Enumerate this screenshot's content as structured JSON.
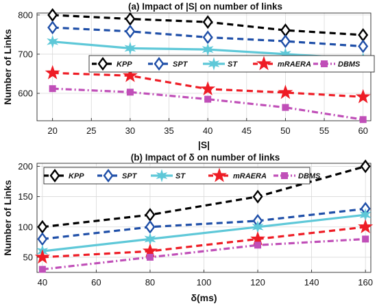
{
  "chart_data": [
    {
      "type": "line",
      "title": "(a) Impact of |S| on number of links",
      "xlabel": "|S|",
      "ylabel": "Number of Links",
      "xlim": [
        18,
        61
      ],
      "ylim": [
        530,
        805
      ],
      "xticks": [
        20,
        25,
        30,
        35,
        40,
        45,
        50,
        55,
        60
      ],
      "yticks": [
        600,
        700,
        800
      ],
      "x": [
        20,
        30,
        40,
        50,
        60
      ],
      "grid": true,
      "legend": "center, horizontal",
      "series": [
        {
          "name": "KPP",
          "color": "#000000",
          "dash": "dash",
          "marker": "diamond",
          "values": [
            800,
            790,
            782,
            761,
            749
          ]
        },
        {
          "name": "SPT",
          "color": "#1f4fa8",
          "dash": "dash",
          "marker": "diamond",
          "values": [
            768,
            758,
            743,
            733,
            720
          ]
        },
        {
          "name": "ST",
          "color": "#5ec8d8",
          "dash": "solid",
          "marker": "star6",
          "values": [
            732,
            715,
            712,
            700,
            688
          ]
        },
        {
          "name": "mRAERA",
          "color": "#ee1c25",
          "dash": "dash",
          "marker": "star5",
          "values": [
            652,
            645,
            611,
            602,
            591
          ]
        },
        {
          "name": "DBMS",
          "color": "#c04fb8",
          "dash": "dashdot",
          "marker": "square",
          "values": [
            612,
            603,
            585,
            564,
            533
          ]
        }
      ]
    },
    {
      "type": "line",
      "title": "(b) Impact of δ on number of links",
      "xlabel": "δ(ms)",
      "ylabel": "Number of Links",
      "xlim": [
        38,
        162
      ],
      "ylim": [
        25,
        205
      ],
      "xticks": [
        40,
        60,
        80,
        100,
        120,
        140,
        160
      ],
      "yticks": [
        50,
        100,
        150,
        200
      ],
      "x": [
        40,
        80,
        120,
        160
      ],
      "grid": true,
      "legend": "top, horizontal",
      "series": [
        {
          "name": "KPP",
          "color": "#000000",
          "dash": "dash",
          "marker": "diamond",
          "values": [
            100,
            120,
            150,
            200
          ]
        },
        {
          "name": "SPT",
          "color": "#1f4fa8",
          "dash": "dash",
          "marker": "diamond",
          "values": [
            80,
            100,
            110,
            130
          ]
        },
        {
          "name": "ST",
          "color": "#5ec8d8",
          "dash": "solid",
          "marker": "star6",
          "values": [
            60,
            80,
            100,
            120
          ]
        },
        {
          "name": "mRAERA",
          "color": "#ee1c25",
          "dash": "dash",
          "marker": "star5",
          "values": [
            50,
            60,
            80,
            100
          ]
        },
        {
          "name": "DBMS",
          "color": "#c04fb8",
          "dash": "dashdot",
          "marker": "square",
          "values": [
            30,
            50,
            70,
            80
          ]
        }
      ]
    }
  ]
}
